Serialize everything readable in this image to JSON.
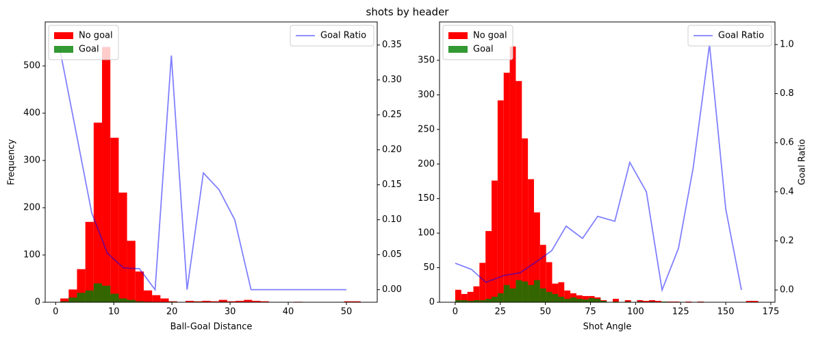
{
  "title": "shots by header",
  "chart_data": [
    {
      "type": "histogram",
      "xlabel": "Ball-Goal Distance",
      "ylabel": "Frequency",
      "xlim": [
        -1.8,
        55.3
      ],
      "ylim": [
        0,
        593
      ],
      "y2lim": [
        -0.018,
        0.383
      ],
      "xticks": [
        0,
        10,
        20,
        30,
        40,
        50
      ],
      "yticks": [
        0,
        100,
        200,
        300,
        400,
        500
      ],
      "y2ticks": [
        {
          "value": 0,
          "label": "0.00"
        },
        0.05,
        {
          "value": 0.1,
          "label": "0.10"
        },
        0.15,
        {
          "value": 0.2,
          "label": "0.20"
        },
        0.25,
        {
          "value": 0.3,
          "label": "0.30"
        },
        0.35
      ],
      "legend": "upper left",
      "y2legend": "upper right",
      "bins": [
        0.8,
        2.235,
        3.67,
        5.105,
        6.54,
        7.975,
        9.41,
        10.845,
        12.28,
        13.715,
        15.15,
        16.585,
        18.02,
        19.455,
        20.89,
        22.325,
        23.76,
        25.195,
        26.63,
        28.065,
        29.5,
        30.935,
        32.37,
        33.805,
        35.24,
        36.675,
        38.11,
        39.545,
        40.98,
        42.415,
        43.85,
        45.285,
        46.72,
        48.155,
        49.59,
        51.025,
        52.46
      ],
      "series": [
        {
          "name": "No goal",
          "color": "#ff0000",
          "alpha": 1,
          "values": [
            8,
            27,
            70,
            170,
            380,
            540,
            348,
            232,
            130,
            65,
            25,
            15,
            8,
            2,
            0,
            3,
            2,
            3,
            2,
            5,
            2,
            3,
            5,
            3,
            2,
            0,
            0,
            0,
            1,
            0,
            0,
            0,
            0,
            0,
            2,
            2
          ]
        },
        {
          "name": "Goal",
          "color": "#008000",
          "alpha": 0.8,
          "values": [
            2,
            10,
            20,
            25,
            40,
            35,
            18,
            8,
            5,
            2,
            1,
            0,
            0,
            1,
            0,
            0,
            1,
            0,
            0,
            1,
            0,
            0,
            0,
            0,
            0,
            0,
            0,
            0,
            0,
            0,
            0,
            0,
            0,
            0,
            0,
            0
          ]
        },
        {
          "name": "Goal Ratio",
          "type": "line",
          "axis": "y2",
          "color": "#0000ff",
          "alpha": 0.5,
          "x": [
            0.7,
            3.4,
            6.2,
            8.9,
            11.7,
            14.4,
            17.1,
            19.9,
            22.6,
            25.4,
            28.1,
            30.8,
            33.6,
            36.3,
            39.1,
            41.8,
            44.5,
            47.3,
            50.0
          ],
          "values": [
            0.345,
            0.23,
            0.11,
            0.052,
            0.031,
            0.03,
            0.0,
            0.335,
            0.0,
            0.167,
            0.143,
            0.1,
            0.0,
            0.0,
            0.0,
            0.0,
            0.0,
            0.0,
            0.0
          ]
        }
      ]
    },
    {
      "type": "histogram",
      "xlabel": "Shot Angle",
      "y2label": "Goal Ratio",
      "xlim": [
        -8.7,
        177.3
      ],
      "ylim": [
        0,
        405.5
      ],
      "y2lim": [
        -0.05,
        1.092
      ],
      "xticks": [
        0,
        25,
        50,
        75,
        100,
        125,
        150,
        175
      ],
      "yticks": [
        0,
        50,
        100,
        150,
        200,
        250,
        300,
        350
      ],
      "y2ticks": [
        {
          "value": 0,
          "label": "0.0"
        },
        0.2,
        0.4,
        0.6,
        0.8,
        {
          "value": 1,
          "label": "1.0"
        }
      ],
      "legend": "upper left",
      "y2legend": "upper right",
      "bins": [
        0,
        3.36,
        6.72,
        10.08,
        13.44,
        16.8,
        20.16,
        23.52,
        26.88,
        30.24,
        33.6,
        36.96,
        40.32,
        43.68,
        47.04,
        50.4,
        53.76,
        57.12,
        60.48,
        63.84,
        67.2,
        70.56,
        73.92,
        77.28,
        80.64,
        84.0,
        87.36,
        90.72,
        94.08,
        97.44,
        100.8,
        104.16,
        107.52,
        110.88,
        114.24,
        117.6,
        120.96,
        124.32,
        127.68,
        131.04,
        134.4,
        137.76,
        141.12,
        144.48,
        147.84,
        151.2,
        154.56,
        157.92,
        161.28,
        164.64,
        168.0
      ],
      "series": [
        {
          "name": "No goal",
          "color": "#ff0000",
          "alpha": 1,
          "values": [
            18,
            12,
            15,
            23,
            57,
            103,
            176,
            292,
            332,
            370,
            320,
            237,
            178,
            130,
            83,
            58,
            27,
            29,
            17,
            13,
            10,
            9,
            9,
            7,
            3,
            0,
            5,
            0,
            3,
            0,
            3,
            2,
            3,
            2,
            1,
            1,
            1,
            0,
            1,
            0,
            1,
            0,
            0,
            0,
            0,
            0,
            0,
            0,
            2,
            2
          ]
        },
        {
          "name": "Goal",
          "color": "#008000",
          "alpha": 0.8,
          "values": [
            3,
            3,
            2,
            3,
            3,
            5,
            8,
            13,
            25,
            20,
            32,
            30,
            25,
            32,
            20,
            15,
            12,
            8,
            5,
            7,
            5,
            4,
            6,
            5,
            2,
            0,
            1,
            0,
            1,
            0,
            1,
            0,
            1,
            0,
            1,
            0,
            0,
            0,
            0,
            0,
            0,
            0,
            0,
            0,
            0,
            0,
            0,
            0,
            0,
            0
          ]
        },
        {
          "name": "Goal Ratio",
          "type": "line",
          "axis": "y2",
          "color": "#0000ff",
          "alpha": 0.5,
          "x": [
            0,
            9,
            17,
            27,
            36,
            45,
            53.5,
            61.5,
            70.6,
            79,
            88.5,
            96.8,
            106,
            114.7,
            123.8,
            132,
            141,
            150,
            158.7
          ],
          "values": [
            0.109,
            0.084,
            0.031,
            0.059,
            0.07,
            0.115,
            0.16,
            0.26,
            0.21,
            0.3,
            0.28,
            0.52,
            0.4,
            0.0,
            0.17,
            0.5,
            1.0,
            0.33,
            0.0
          ]
        }
      ]
    }
  ]
}
